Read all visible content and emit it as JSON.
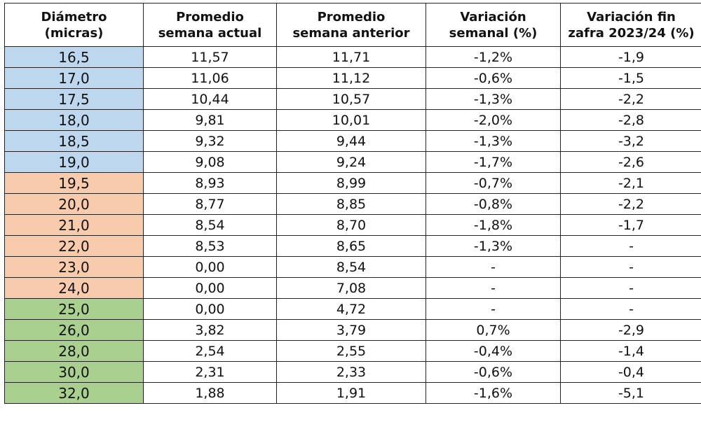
{
  "colors": {
    "blue": "#bdd7ee",
    "orange": "#f8cbad",
    "green": "#a9d08e",
    "border": "#222222"
  },
  "headers": [
    [
      "Diámetro",
      "(micras)"
    ],
    [
      "Promedio",
      "semana actual"
    ],
    [
      "Promedio",
      "semana anterior"
    ],
    [
      "Variación",
      "semanal (%)"
    ],
    [
      "Variación fin",
      "zafra 2023/24 (%)"
    ]
  ],
  "rows": [
    {
      "group": "blue",
      "cells": [
        "16,5",
        "11,57",
        "11,71",
        "-1,2%",
        "-1,9"
      ]
    },
    {
      "group": "blue",
      "cells": [
        "17,0",
        "11,06",
        "11,12",
        "-0,6%",
        "-1,5"
      ]
    },
    {
      "group": "blue",
      "cells": [
        "17,5",
        "10,44",
        "10,57",
        "-1,3%",
        "-2,2"
      ]
    },
    {
      "group": "blue",
      "cells": [
        "18,0",
        "9,81",
        "10,01",
        "-2,0%",
        "-2,8"
      ]
    },
    {
      "group": "blue",
      "cells": [
        "18,5",
        "9,32",
        "9,44",
        "-1,3%",
        "-3,2"
      ]
    },
    {
      "group": "blue",
      "cells": [
        "19,0",
        "9,08",
        "9,24",
        "-1,7%",
        "-2,6"
      ]
    },
    {
      "group": "orange",
      "cells": [
        "19,5",
        "8,93",
        "8,99",
        "-0,7%",
        "-2,1"
      ]
    },
    {
      "group": "orange",
      "cells": [
        "20,0",
        "8,77",
        "8,85",
        "-0,8%",
        "-2,2"
      ]
    },
    {
      "group": "orange",
      "cells": [
        "21,0",
        "8,54",
        "8,70",
        "-1,8%",
        "-1,7"
      ]
    },
    {
      "group": "orange",
      "cells": [
        "22,0",
        "8,53",
        "8,65",
        "-1,3%",
        "-"
      ]
    },
    {
      "group": "orange",
      "cells": [
        "23,0",
        "0,00",
        "8,54",
        "-",
        "-"
      ]
    },
    {
      "group": "orange",
      "cells": [
        "24,0",
        "0,00",
        "7,08",
        "-",
        "-"
      ]
    },
    {
      "group": "green",
      "cells": [
        "25,0",
        "0,00",
        "4,72",
        "-",
        "-"
      ]
    },
    {
      "group": "green",
      "cells": [
        "26,0",
        "3,82",
        "3,79",
        "0,7%",
        "-2,9"
      ]
    },
    {
      "group": "green",
      "cells": [
        "28,0",
        "2,54",
        "2,55",
        "-0,4%",
        "-1,4"
      ]
    },
    {
      "group": "green",
      "cells": [
        "30,0",
        "2,31",
        "2,33",
        "-0,6%",
        "-0,4"
      ]
    },
    {
      "group": "green",
      "cells": [
        "32,0",
        "1,88",
        "1,91",
        "-1,6%",
        "-5,1"
      ]
    }
  ]
}
